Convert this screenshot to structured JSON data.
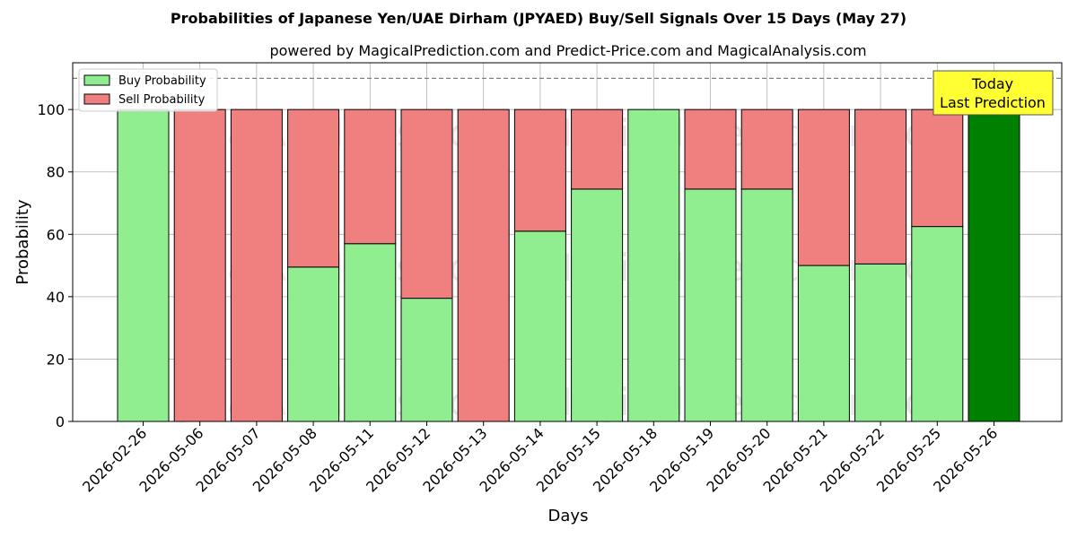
{
  "chart_data": {
    "type": "bar",
    "stacked": true,
    "title": "Probabilities of Japanese Yen/UAE Dirham (JPYAED) Buy/Sell Signals Over 15 Days (May 27)",
    "subtitle": "powered by MagicalPrediction.com and Predict-Price.com and MagicalAnalysis.com",
    "xlabel": "Days",
    "ylabel": "Probability",
    "ylim": [
      0,
      115
    ],
    "yticks": [
      0,
      20,
      40,
      60,
      80,
      100
    ],
    "grid": true,
    "legend_position": "top-left",
    "reference_line": 110,
    "categories": [
      "2026-02-26",
      "2026-05-06",
      "2026-05-07",
      "2026-05-08",
      "2026-05-11",
      "2026-05-12",
      "2026-05-13",
      "2026-05-14",
      "2026-05-15",
      "2026-05-18",
      "2026-05-19",
      "2026-05-20",
      "2026-05-21",
      "2026-05-22",
      "2026-05-25",
      "2026-05-26"
    ],
    "series": [
      {
        "name": "Buy Probability",
        "color": "#90ee90",
        "values": [
          100,
          0,
          0,
          49.5,
          57,
          39.5,
          0,
          61,
          74.5,
          100,
          74.5,
          74.5,
          50,
          50.5,
          62.5,
          100
        ]
      },
      {
        "name": "Sell Probability",
        "color": "#f08080",
        "values": [
          0,
          100,
          100,
          50.5,
          43,
          60.5,
          100,
          39,
          25.5,
          0,
          25.5,
          25.5,
          50,
          49.5,
          37.5,
          0
        ]
      }
    ],
    "highlight": {
      "category": "2026-05-26",
      "color": "#008000"
    },
    "annotation": {
      "lines": [
        "Today",
        "Last Prediction"
      ],
      "background": "#ffff33"
    },
    "watermarks": [
      "MagicalAnalysis.com",
      "MagicalPrediction.com"
    ]
  }
}
